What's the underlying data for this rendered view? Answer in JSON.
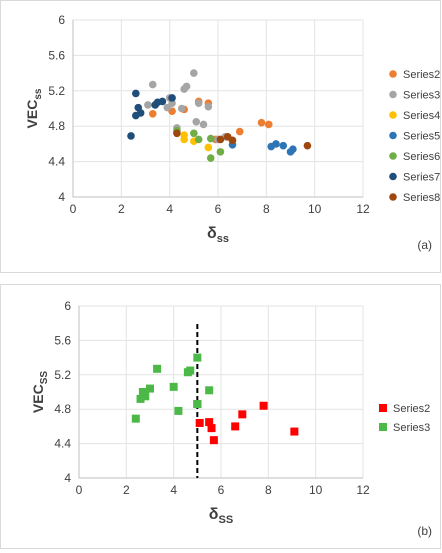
{
  "chart_data": [
    {
      "type": "scatter",
      "panel_label": "(a)",
      "xlabel_main": "δ",
      "xlabel_sub": "ss",
      "ylabel_main": "VEC",
      "ylabel_sub": "ss",
      "xlim": [
        0,
        12
      ],
      "ylim": [
        4,
        6
      ],
      "x_ticks": [
        "0",
        "2",
        "4",
        "6",
        "8",
        "10",
        "12"
      ],
      "y_ticks": [
        "4",
        "4.4",
        "4.8",
        "5.2",
        "5.6",
        "6"
      ],
      "grid": true,
      "legend_position": "right",
      "marker": "circle",
      "series": [
        {
          "name": "Series2",
          "color": "#ed7d31",
          "points": [
            [
              3.3,
              4.94
            ],
            [
              4.1,
              4.97
            ],
            [
              4.6,
              4.99
            ],
            [
              5.2,
              5.08
            ],
            [
              5.6,
              5.06
            ],
            [
              6.9,
              4.74
            ],
            [
              7.8,
              4.84
            ],
            [
              8.1,
              4.82
            ],
            [
              5.9,
              4.65
            ]
          ]
        },
        {
          "name": "Series3",
          "color": "#a5a5a5",
          "points": [
            [
              3.1,
              5.04
            ],
            [
              3.3,
              5.27
            ],
            [
              3.9,
              5.01
            ],
            [
              4.0,
              5.12
            ],
            [
              4.1,
              5.06
            ],
            [
              4.3,
              4.78
            ],
            [
              4.5,
              5.0
            ],
            [
              4.6,
              5.22
            ],
            [
              4.7,
              5.25
            ],
            [
              5.0,
              5.4
            ],
            [
              5.2,
              5.06
            ],
            [
              5.6,
              5.02
            ],
            [
              5.1,
              4.85
            ],
            [
              5.4,
              4.82
            ],
            [
              6.0,
              4.65
            ],
            [
              6.3,
              4.68
            ]
          ]
        },
        {
          "name": "Series4",
          "color": "#ffc000",
          "points": [
            [
              4.6,
              4.7
            ],
            [
              4.6,
              4.65
            ],
            [
              5.0,
              4.63
            ],
            [
              5.6,
              4.56
            ]
          ]
        },
        {
          "name": "Series5",
          "color": "#2e75b6",
          "points": [
            [
              6.6,
              4.59
            ],
            [
              8.2,
              4.57
            ],
            [
              8.4,
              4.6
            ],
            [
              8.7,
              4.58
            ],
            [
              9.0,
              4.51
            ],
            [
              9.1,
              4.54
            ]
          ]
        },
        {
          "name": "Series6",
          "color": "#70ad47",
          "points": [
            [
              4.3,
              4.75
            ],
            [
              5.0,
              4.72
            ],
            [
              5.2,
              4.65
            ],
            [
              5.7,
              4.66
            ],
            [
              5.7,
              4.44
            ],
            [
              6.1,
              4.51
            ]
          ]
        },
        {
          "name": "Series7",
          "color": "#1f4e79",
          "points": [
            [
              2.4,
              4.69
            ],
            [
              2.6,
              4.92
            ],
            [
              2.7,
              5.01
            ],
            [
              2.8,
              4.95
            ],
            [
              2.6,
              5.17
            ],
            [
              3.4,
              5.04
            ],
            [
              3.5,
              5.07
            ],
            [
              3.7,
              5.08
            ],
            [
              4.1,
              5.12
            ]
          ]
        },
        {
          "name": "Series8",
          "color": "#9e480e",
          "points": [
            [
              4.3,
              4.72
            ],
            [
              6.1,
              4.65
            ],
            [
              6.4,
              4.68
            ],
            [
              6.6,
              4.64
            ],
            [
              9.7,
              4.58
            ]
          ]
        }
      ]
    },
    {
      "type": "scatter",
      "panel_label": "(b)",
      "xlabel_main": "δ",
      "xlabel_sub": "SS",
      "ylabel_main": "VEC",
      "ylabel_sub": "SS",
      "xlim": [
        0,
        12
      ],
      "ylim": [
        4,
        6
      ],
      "x_ticks": [
        "0",
        "2",
        "4",
        "6",
        "8",
        "10",
        "12"
      ],
      "y_ticks": [
        "4",
        "4.4",
        "4.8",
        "5.2",
        "5.6",
        "6"
      ],
      "grid": true,
      "legend_position": "right",
      "marker": "square",
      "reference_line_x": 5,
      "series": [
        {
          "name": "Series2",
          "color": "#ff0000",
          "points": [
            [
              5.0,
              4.86
            ],
            [
              5.1,
              4.64
            ],
            [
              5.5,
              4.65
            ],
            [
              5.6,
              4.58
            ],
            [
              5.7,
              4.44
            ],
            [
              6.6,
              4.6
            ],
            [
              6.9,
              4.74
            ],
            [
              7.8,
              4.84
            ],
            [
              9.1,
              4.54
            ]
          ]
        },
        {
          "name": "Series3",
          "color": "#4cb848",
          "points": [
            [
              2.4,
              4.69
            ],
            [
              2.6,
              4.92
            ],
            [
              2.8,
              4.95
            ],
            [
              2.7,
              5.0
            ],
            [
              3.0,
              5.04
            ],
            [
              3.3,
              5.27
            ],
            [
              4.0,
              5.06
            ],
            [
              4.2,
              4.78
            ],
            [
              4.6,
              5.23
            ],
            [
              4.7,
              5.25
            ],
            [
              5.0,
              5.4
            ],
            [
              5.0,
              4.86
            ],
            [
              5.5,
              5.02
            ]
          ]
        }
      ]
    }
  ]
}
